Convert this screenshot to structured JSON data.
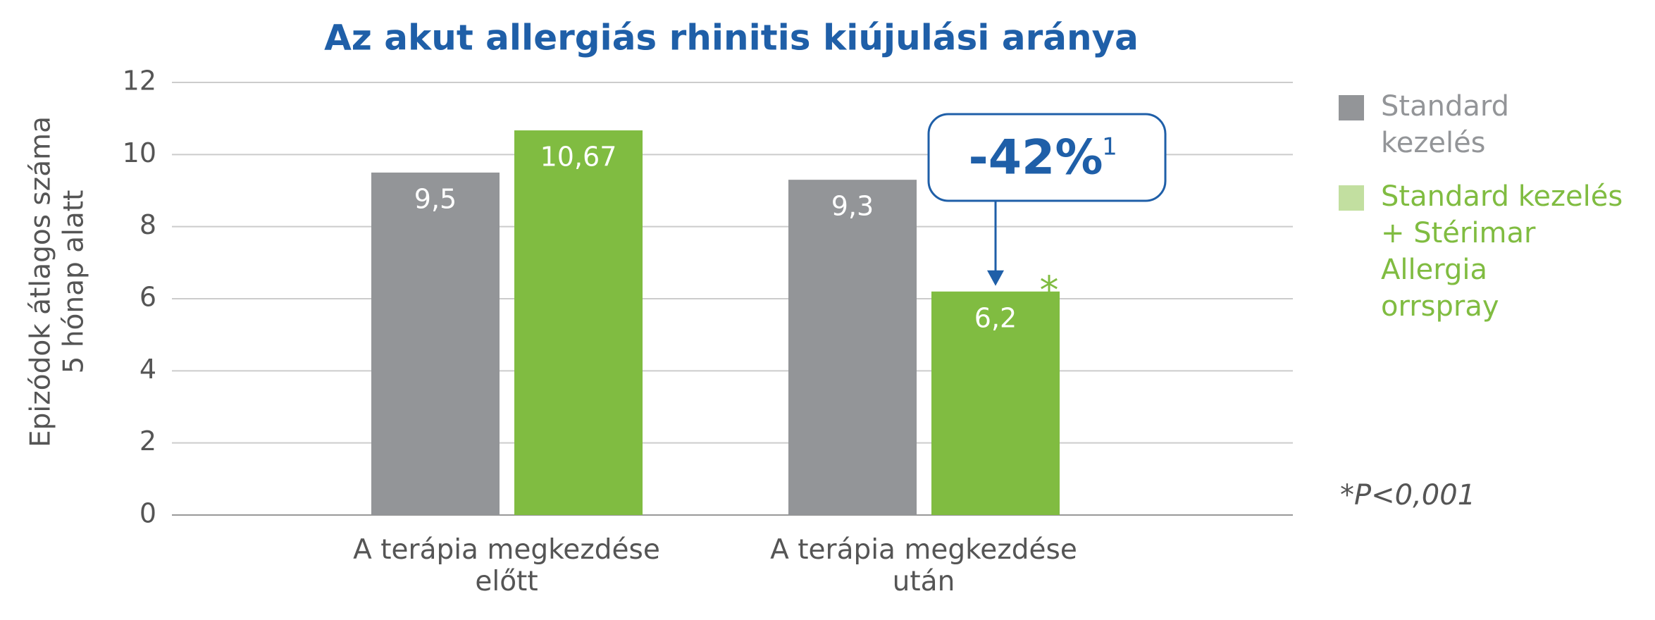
{
  "chart_data": {
    "type": "bar",
    "title": "Az akut allergiás rhinitis kiújulási aránya",
    "y_label": [
      "Epizódok átlagos száma",
      "5 hónap alatt"
    ],
    "categories": [
      "A terápia megkezdése\nelőtt",
      "A terápia megkezdése\nután"
    ],
    "series": [
      {
        "name": "Standard\nkezelés",
        "color": "#939598",
        "values": [
          9.5,
          9.3
        ],
        "value_labels": [
          "9,5",
          "9,3"
        ]
      },
      {
        "name": "Standard kezelés\n+ Stérimar Allergia\norrspray",
        "color": "#80bc41",
        "values": [
          10.67,
          6.2
        ],
        "value_labels": [
          "10,67",
          "6,2"
        ]
      }
    ],
    "ylim": [
      0,
      12
    ],
    "yticks": [
      0,
      2,
      4,
      6,
      8,
      10,
      12
    ],
    "grid": true,
    "annotation": {
      "text": "-42%",
      "sup": "1"
    },
    "significance": "*",
    "footnote": "*P<0,001"
  }
}
